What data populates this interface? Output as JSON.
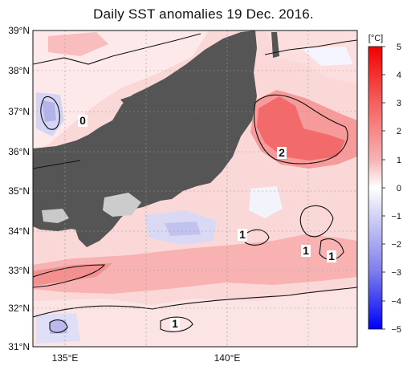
{
  "title": "Daily SST anomalies 19 Dec. 2016.",
  "map": {
    "lat_labels": [
      "39°N",
      "38°N",
      "37°N",
      "36°N",
      "35°N",
      "34°N",
      "33°N",
      "32°N",
      "31°N"
    ],
    "lon_labels": [
      "135°E",
      "140°E"
    ],
    "contour_labels": [
      {
        "name": "contour-label-0",
        "text": "0"
      },
      {
        "name": "contour-label-2",
        "text": "2"
      },
      {
        "name": "contour-label-1-central",
        "text": "1"
      },
      {
        "name": "contour-label-1-east-a",
        "text": "1"
      },
      {
        "name": "contour-label-1-east-b",
        "text": "1"
      },
      {
        "name": "contour-label-1-south",
        "text": "1"
      }
    ]
  },
  "colorbar": {
    "unit": "[°C]",
    "ticks": [
      "5",
      "4",
      "3",
      "2",
      "1",
      "0",
      "−1",
      "−2",
      "−3",
      "−4",
      "−5"
    ],
    "range": [
      -5,
      5
    ]
  },
  "colors": {
    "land": "#555555",
    "positive_strong": "#f33434",
    "positive_mid": "#f8a3a3",
    "positive_weak": "#fbd6d6",
    "negative_weak": "#dadaf6",
    "negative_mid": "#b6b6ee"
  }
}
